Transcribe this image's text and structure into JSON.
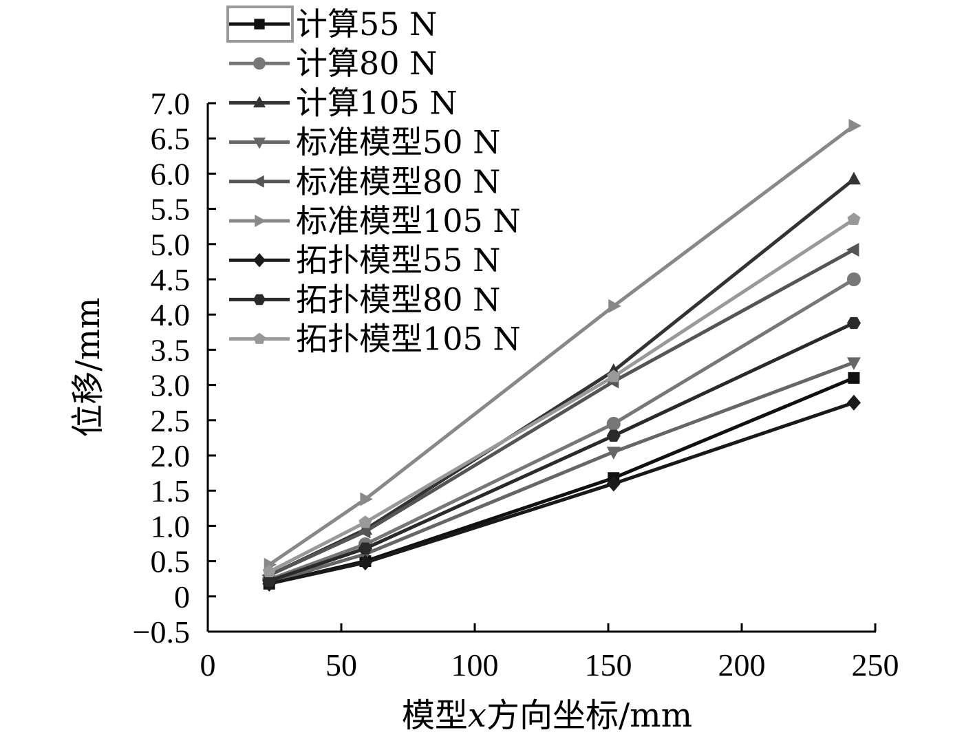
{
  "chart_data": {
    "type": "line",
    "title": "",
    "xlabel_parts": [
      "模型",
      "x",
      "方向坐标/mm"
    ],
    "ylabel": "位移/mm",
    "xlim": [
      0,
      250
    ],
    "ylim": [
      -0.5,
      7.0
    ],
    "xticks": [
      "0",
      "50",
      "100",
      "150",
      "200",
      "250"
    ],
    "yticks": [
      "-0.5",
      "0",
      "0.5",
      "1.0",
      "1.5",
      "2.0",
      "2.5",
      "3.0",
      "3.5",
      "4.0",
      "4.5",
      "5.0",
      "5.5",
      "6.0",
      "6.5",
      "7.0"
    ],
    "grid": false,
    "legend_position": "top-left",
    "x": [
      23,
      59,
      152,
      242
    ],
    "series": [
      {
        "name": "计算55 N",
        "marker": "square",
        "color": "#111111",
        "values": [
          0.18,
          0.5,
          1.68,
          3.1
        ]
      },
      {
        "name": "计算80 N",
        "marker": "circle",
        "color": "#777777",
        "values": [
          0.24,
          0.74,
          2.45,
          4.5
        ]
      },
      {
        "name": "计算105 N",
        "marker": "triangle-up",
        "color": "#333333",
        "values": [
          0.3,
          0.95,
          3.2,
          5.92
        ]
      },
      {
        "name": "标准模型50 N",
        "marker": "triangle-down",
        "color": "#666666",
        "values": [
          0.2,
          0.6,
          2.05,
          3.32
        ]
      },
      {
        "name": "标准模型80 N",
        "marker": "triangle-left",
        "color": "#555555",
        "values": [
          0.3,
          0.92,
          3.05,
          4.92
        ]
      },
      {
        "name": "标准模型105 N",
        "marker": "triangle-right",
        "color": "#888888",
        "values": [
          0.45,
          1.38,
          4.12,
          6.68
        ]
      },
      {
        "name": "拓扑模型55 N",
        "marker": "diamond",
        "color": "#1a1a1a",
        "values": [
          0.18,
          0.48,
          1.6,
          2.75
        ]
      },
      {
        "name": "拓扑模型80 N",
        "marker": "hexagon",
        "color": "#2a2a2a",
        "values": [
          0.22,
          0.68,
          2.28,
          3.88
        ]
      },
      {
        "name": "拓扑模型105 N",
        "marker": "pentagon",
        "color": "#999999",
        "values": [
          0.35,
          1.05,
          3.12,
          5.35
        ]
      }
    ]
  }
}
